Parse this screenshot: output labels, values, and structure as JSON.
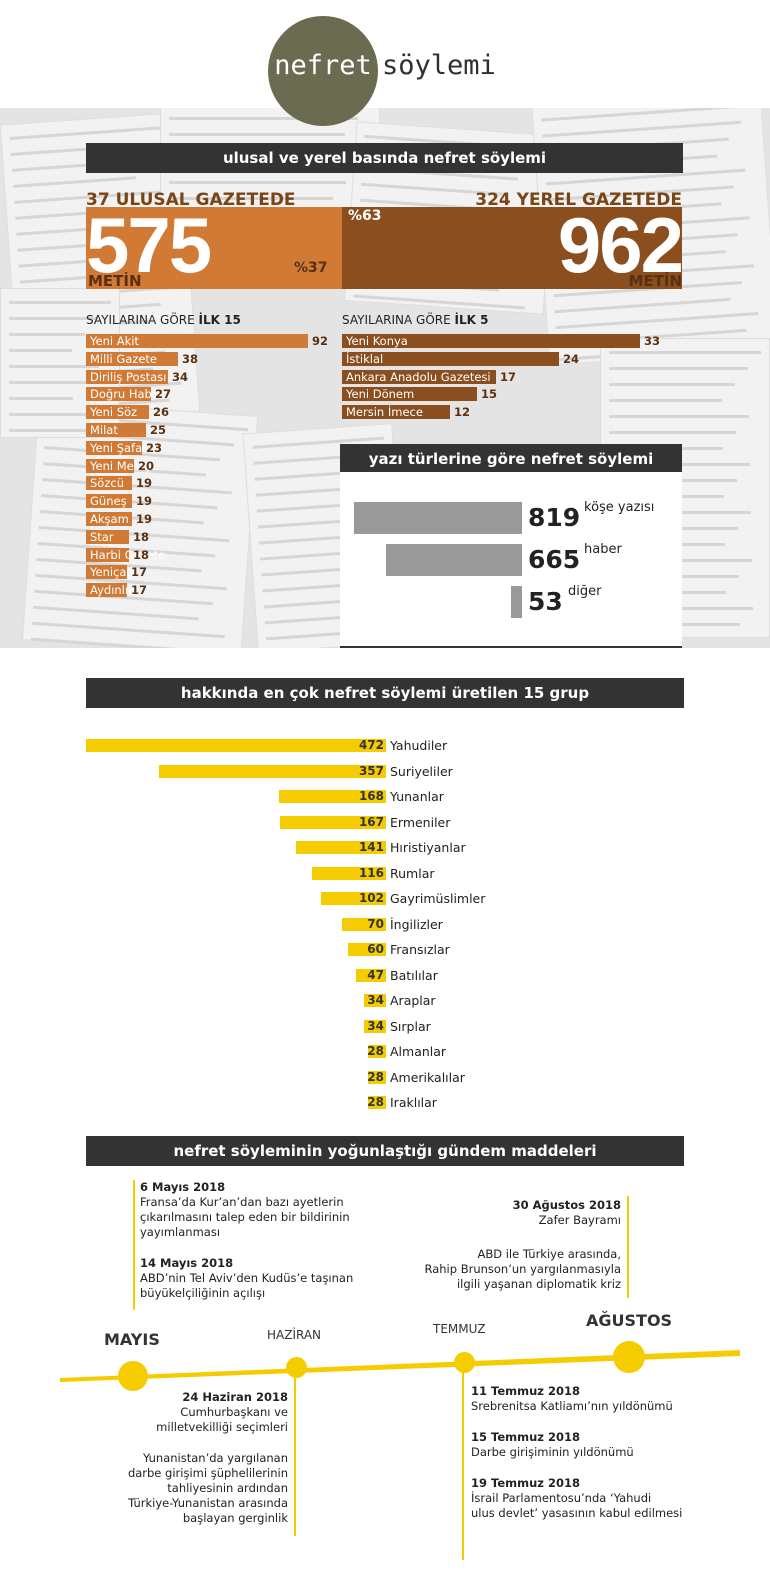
{
  "logo": {
    "left": "nefret",
    "right": "söylemi"
  },
  "section1": {
    "title": "ulusal ve yerel basında nefret söylemi",
    "national": {
      "label": "37 ULUSAL GAZETEDE",
      "number": "575",
      "unit": "METİN",
      "pct": "%37"
    },
    "local": {
      "label": "324 YEREL GAZETEDE",
      "number": "962",
      "unit": "METİN",
      "pct": "%63"
    }
  },
  "colors": {
    "orange": "#d07a35",
    "brown": "#8b4e1e",
    "gray": "#9a9a9a",
    "yellow": "#f5cc00",
    "dark": "#333333"
  },
  "chart_data": [
    {
      "type": "bar",
      "heading": {
        "pre": "SAYILARINA GÖRE ",
        "bold": "İLK 15"
      },
      "categories": [
        "Yeni Akit",
        "Milli Gazete",
        "Diriliş Postası",
        "Doğru Haber",
        "Yeni Söz",
        "Milat",
        "Yeni Şafak",
        "Yeni Mesaj",
        "Sözcü",
        "Güneş",
        "Akşam",
        "Star",
        "Harbi Gazete",
        "Yeniçağ",
        "Aydınlık"
      ],
      "values": [
        92,
        38,
        34,
        27,
        26,
        25,
        23,
        20,
        19,
        19,
        19,
        18,
        18,
        17,
        17
      ]
    },
    {
      "type": "bar",
      "heading": {
        "pre": "SAYILARINA GÖRE ",
        "bold": "İLK 5"
      },
      "categories": [
        "Yeni Konya",
        "İstiklal",
        "Ankara Anadolu Gazetesi",
        "Yeni Dönem",
        "Mersin İmece"
      ],
      "values": [
        33,
        24,
        17,
        15,
        12
      ]
    },
    {
      "type": "bar",
      "title": "yazı türlerine göre nefret söylemi",
      "categories": [
        "köşe yazısı",
        "haber",
        "diğer"
      ],
      "values": [
        819,
        665,
        53
      ]
    },
    {
      "type": "bar",
      "title": "hakkında en çok nefret söylemi üretilen 15 grup",
      "categories": [
        "Yahudiler",
        "Suriyeliler",
        "Yunanlar",
        "Ermeniler",
        "Hıristiyanlar",
        "Rumlar",
        "Gayrimüslimler",
        "İngilizler",
        "Fransızlar",
        "Batılılar",
        "Araplar",
        "Sırplar",
        "Almanlar",
        "Amerikalılar",
        "Iraklılar"
      ],
      "values": [
        472,
        357,
        168,
        167,
        141,
        116,
        102,
        70,
        60,
        47,
        34,
        34,
        28,
        28,
        28
      ]
    }
  ],
  "timeline": {
    "title": "nefret söyleminin yoğunlaştığı gündem maddeleri",
    "months": [
      "MAYIS",
      "HAZİRAN",
      "TEMMUZ",
      "AĞUSTOS"
    ],
    "events_top_left": [
      {
        "date": "6 Mayıs 2018",
        "text": [
          "Fransa’da Kur’an’dan bazı ayetlerin",
          "çıkarılmasını talep eden bir bildirinin",
          "yayımlanması"
        ]
      },
      {
        "date": "14 Mayıs 2018",
        "text": [
          "ABD’nin Tel Aviv’den Kudüs’e taşınan",
          "büyükelçiliğinin açılışı"
        ]
      }
    ],
    "events_top_right": [
      {
        "date": "30 Ağustos 2018",
        "text": [
          "Zafer Bayramı"
        ]
      },
      {
        "date": "",
        "text": [
          "ABD ile Türkiye arasında,",
          "Rahip Brunson’un yargılanmasıyla",
          "ilgili yaşanan diplomatik kriz"
        ]
      }
    ],
    "events_bottom_left": [
      {
        "date": "24 Haziran 2018",
        "text": [
          "Cumhurbaşkanı ve",
          "milletvekilliği seçimleri"
        ]
      },
      {
        "date": "",
        "text": [
          "Yunanistan’da yargılanan",
          "darbe girişimi şüphelilerinin",
          "tahliyesinin ardından",
          "Türkiye-Yunanistan arasında",
          "başlayan gerginlik"
        ]
      }
    ],
    "events_bottom_right": [
      {
        "date": "11 Temmuz 2018",
        "text": [
          "Srebrenitsa Katliamı’nın yıldönümü"
        ]
      },
      {
        "date": "15 Temmuz 2018",
        "text": [
          "Darbe girişiminin yıldönümü"
        ]
      },
      {
        "date": "19 Temmuz 2018",
        "text": [
          "İsrail Parlamentosu’nda ‘Yahudi",
          "ulus devlet’ yasasının kabul edilmesi"
        ]
      }
    ]
  }
}
